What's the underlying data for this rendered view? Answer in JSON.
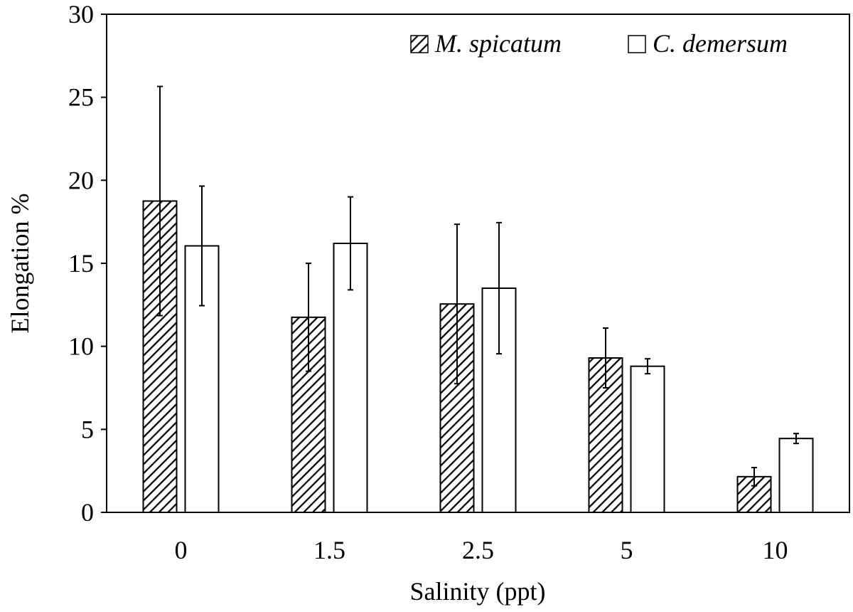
{
  "chart_data": {
    "type": "bar",
    "xlabel": "Salinity (ppt)",
    "ylabel": "Elongation %",
    "categories": [
      "0",
      "1.5",
      "2.5",
      "5",
      "10"
    ],
    "ylim": [
      0,
      30
    ],
    "yticks": [
      0,
      5,
      10,
      15,
      20,
      25,
      30
    ],
    "grid": false,
    "legend_position": "top-right",
    "series": [
      {
        "name": "M. spicatum",
        "pattern": "diagonal-hatch",
        "values": [
          18.75,
          11.75,
          12.55,
          9.3,
          2.15
        ],
        "error": [
          6.9,
          3.25,
          4.8,
          1.8,
          0.55
        ]
      },
      {
        "name": "C. demersum",
        "pattern": "solid-white",
        "values": [
          16.05,
          16.2,
          13.5,
          8.8,
          4.45
        ],
        "error": [
          3.6,
          2.8,
          3.95,
          0.45,
          0.3
        ]
      }
    ],
    "colors": {
      "axis": "#000000",
      "bar_fill": "#ffffff",
      "hatch": "#000000"
    }
  }
}
